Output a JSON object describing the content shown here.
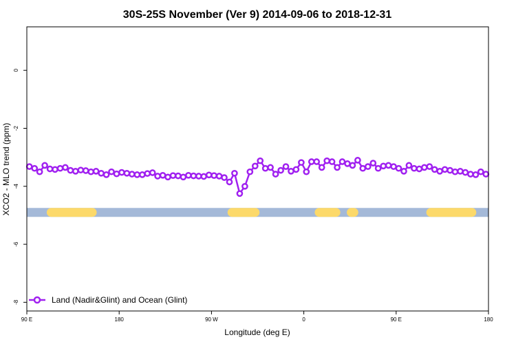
{
  "chart_data": {
    "type": "line",
    "title": "30S-25S November (Ver 9)   2014-09-06 to 2018-12-31",
    "xlabel": "Longitude (deg E)",
    "ylabel": "XCO2 - MLO trend (ppm)",
    "xlim": [
      90,
      450
    ],
    "ylim": [
      -8.3,
      1.5
    ],
    "xticks": [
      {
        "value": 90,
        "label": "90 E"
      },
      {
        "value": 162,
        "label": "180"
      },
      {
        "value": 234,
        "label": "90 W"
      },
      {
        "value": 306,
        "label": "0"
      },
      {
        "value": 378,
        "label": "90 E"
      },
      {
        "value": 450,
        "label": "180"
      }
    ],
    "yticks": [
      {
        "value": 0,
        "label": "0"
      },
      {
        "value": -2,
        "label": "-2"
      },
      {
        "value": -4,
        "label": "-4"
      },
      {
        "value": -6,
        "label": "-6"
      },
      {
        "value": -8,
        "label": "-8"
      }
    ],
    "grid": false,
    "legend_position": "bottom-left",
    "series": [
      {
        "name": "Land (Nadir&Glint) and Ocean (Glint)",
        "color": "#a020f0",
        "x": [
          92,
          96,
          100,
          104,
          108,
          112,
          116,
          120,
          124,
          128,
          132,
          136,
          140,
          144,
          148,
          152,
          156,
          160,
          164,
          168,
          172,
          176,
          180,
          184,
          188,
          192,
          196,
          200,
          204,
          208,
          212,
          216,
          220,
          224,
          228,
          232,
          236,
          240,
          244,
          248,
          252,
          256,
          260,
          264,
          268,
          272,
          276,
          280,
          284,
          288,
          292,
          296,
          300,
          304,
          308,
          312,
          316,
          320,
          324,
          328,
          332,
          336,
          340,
          344,
          348,
          352,
          356,
          360,
          364,
          368,
          372,
          376,
          380,
          384,
          388,
          392,
          396,
          400,
          404,
          408,
          412,
          416,
          420,
          424,
          428,
          432,
          436,
          440,
          444,
          448
        ],
        "y": [
          -3.32,
          -3.38,
          -3.5,
          -3.28,
          -3.4,
          -3.42,
          -3.38,
          -3.35,
          -3.45,
          -3.48,
          -3.44,
          -3.46,
          -3.5,
          -3.48,
          -3.55,
          -3.6,
          -3.5,
          -3.57,
          -3.52,
          -3.55,
          -3.58,
          -3.6,
          -3.6,
          -3.56,
          -3.53,
          -3.65,
          -3.62,
          -3.68,
          -3.63,
          -3.64,
          -3.68,
          -3.62,
          -3.64,
          -3.65,
          -3.66,
          -3.61,
          -3.63,
          -3.65,
          -3.7,
          -3.85,
          -3.55,
          -4.25,
          -4.0,
          -3.5,
          -3.3,
          -3.12,
          -3.38,
          -3.35,
          -3.58,
          -3.45,
          -3.32,
          -3.48,
          -3.42,
          -3.18,
          -3.5,
          -3.15,
          -3.15,
          -3.35,
          -3.12,
          -3.15,
          -3.35,
          -3.15,
          -3.22,
          -3.28,
          -3.1,
          -3.38,
          -3.32,
          -3.2,
          -3.38,
          -3.3,
          -3.28,
          -3.32,
          -3.38,
          -3.48,
          -3.28,
          -3.38,
          -3.4,
          -3.35,
          -3.32,
          -3.42,
          -3.48,
          -3.42,
          -3.45,
          -3.5,
          -3.48,
          -3.52,
          -3.58,
          -3.6,
          -3.5,
          -3.58
        ]
      }
    ],
    "surface_band": {
      "y": -4.9,
      "ocean_color": "#a4b9d8",
      "land_color": "#fcd96a",
      "land_segments": [
        [
          109,
          141
        ],
        [
          250,
          268
        ],
        [
          318,
          331
        ],
        [
          343,
          345
        ],
        [
          405,
          437
        ]
      ]
    }
  }
}
